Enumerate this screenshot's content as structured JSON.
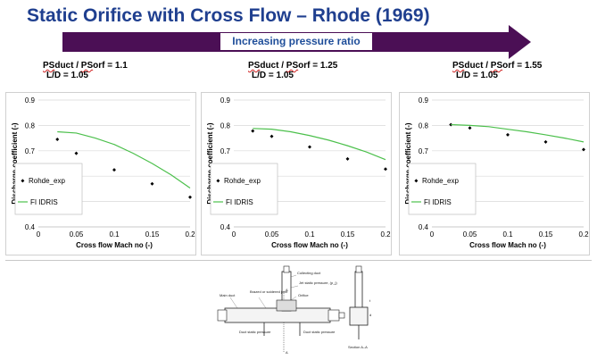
{
  "title": "Static Orifice with Cross Flow – Rhode (1969)",
  "arrow": {
    "label": "Increasing pressure ratio",
    "color": "#4b0f55"
  },
  "chart_data": [
    {
      "type": "scatter",
      "condition": {
        "ratio_label": "PSduct / PSorf = 1.1",
        "ld_label": "L/D = 1.05"
      },
      "xlabel": "Cross flow Mach no (-)",
      "ylabel": "Discharge coefficient (-)",
      "xlim": [
        0,
        0.2
      ],
      "ylim": [
        0.4,
        0.9
      ],
      "xticks": [
        "0",
        "0.05",
        "0.1",
        "0.15",
        "0.2"
      ],
      "yticks": [
        "0.4",
        "0.5",
        "0.6",
        "0.7",
        "0.8",
        "0.9"
      ],
      "grid": true,
      "legend": "left",
      "series": [
        {
          "name": "Rohde_exp",
          "kind": "points",
          "color": "#000000",
          "x": [
            0.025,
            0.05,
            0.1,
            0.15,
            0.2
          ],
          "y": [
            0.745,
            0.69,
            0.625,
            0.57,
            0.517
          ]
        },
        {
          "name": "FI IDRIS",
          "kind": "line",
          "color": "#4cc04c",
          "x": [
            0.025,
            0.05,
            0.075,
            0.1,
            0.125,
            0.15,
            0.175,
            0.2
          ],
          "y": [
            0.775,
            0.77,
            0.75,
            0.725,
            0.69,
            0.65,
            0.605,
            0.553
          ]
        }
      ]
    },
    {
      "type": "scatter",
      "condition": {
        "ratio_label": "PSduct / PSorf = 1.25",
        "ld_label": "L/D = 1.05"
      },
      "xlabel": "Cross flow Mach no (-)",
      "ylabel": "Discharge coefficient (-)",
      "xlim": [
        0,
        0.2
      ],
      "ylim": [
        0.4,
        0.9
      ],
      "xticks": [
        "0",
        "0.05",
        "0.1",
        "0.15",
        "0.2"
      ],
      "yticks": [
        "0.4",
        "0.5",
        "0.6",
        "0.7",
        "0.8",
        "0.9"
      ],
      "grid": true,
      "legend": "left",
      "series": [
        {
          "name": "Rohde_exp",
          "kind": "points",
          "color": "#000000",
          "x": [
            0.025,
            0.05,
            0.1,
            0.15,
            0.2
          ],
          "y": [
            0.778,
            0.757,
            0.715,
            0.668,
            0.628
          ]
        },
        {
          "name": "FI IDRIS",
          "kind": "line",
          "color": "#4cc04c",
          "x": [
            0.025,
            0.05,
            0.075,
            0.1,
            0.125,
            0.15,
            0.175,
            0.2
          ],
          "y": [
            0.788,
            0.785,
            0.775,
            0.76,
            0.742,
            0.72,
            0.695,
            0.665
          ]
        }
      ]
    },
    {
      "type": "scatter",
      "condition": {
        "ratio_label": "PSduct / PSorf = 1.55",
        "ld_label": "L/D = 1.05"
      },
      "xlabel": "Cross flow Mach no (-)",
      "ylabel": "Discharge coefficient (-)",
      "xlim": [
        0,
        0.2
      ],
      "ylim": [
        0.4,
        0.9
      ],
      "xticks": [
        "0",
        "0.05",
        "0.1",
        "0.15",
        "0.2"
      ],
      "yticks": [
        "0.4",
        "0.5",
        "0.6",
        "0.7",
        "0.8",
        "0.9"
      ],
      "grid": true,
      "legend": "left",
      "series": [
        {
          "name": "Rohde_exp",
          "kind": "points",
          "color": "#000000",
          "x": [
            0.025,
            0.05,
            0.1,
            0.15,
            0.2
          ],
          "y": [
            0.803,
            0.79,
            0.763,
            0.735,
            0.705
          ]
        },
        {
          "name": "FI IDRIS",
          "kind": "line",
          "color": "#4cc04c",
          "x": [
            0.025,
            0.05,
            0.075,
            0.1,
            0.125,
            0.15,
            0.175,
            0.2
          ],
          "y": [
            0.803,
            0.8,
            0.795,
            0.785,
            0.775,
            0.763,
            0.75,
            0.735
          ]
        }
      ]
    }
  ],
  "schematic": {
    "labels": [
      "Main duct",
      "Brazed or soldered joint",
      "Collecting duct",
      "Jet static pressure, (p_j)",
      "Orifice",
      "Duct static pressure",
      "Duct static pressure",
      "Section A–A",
      "A",
      "A",
      "t",
      "d"
    ]
  }
}
